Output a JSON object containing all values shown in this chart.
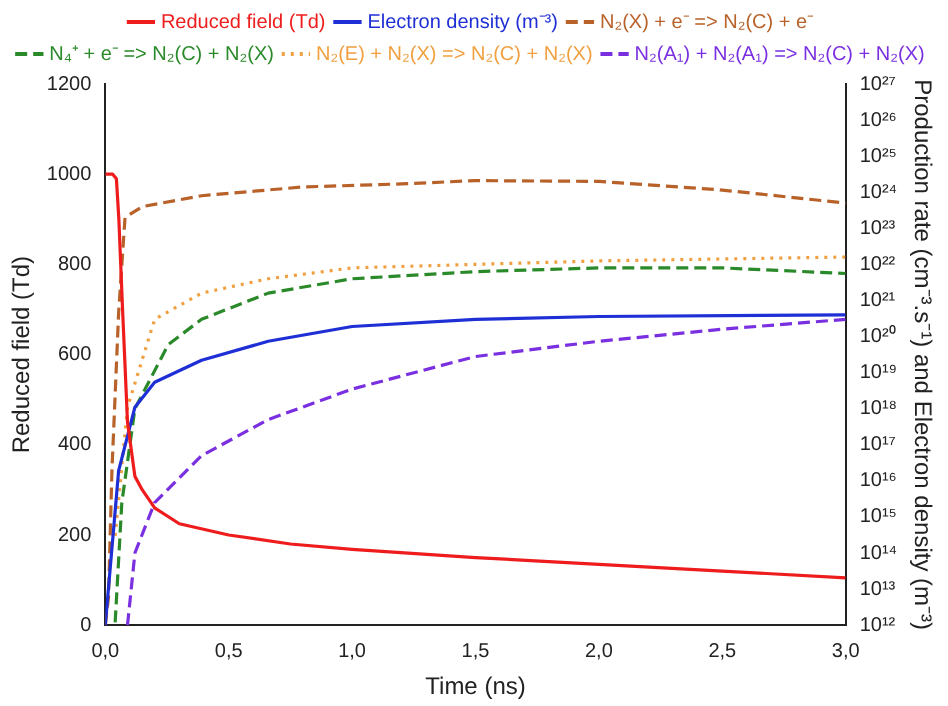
{
  "chart_data": {
    "type": "line",
    "xlabel": "Time (ns)",
    "ylabel": "Reduced field (Td)",
    "y2label": "Production rate (cm⁻³.s⁻¹) and Electron density (m⁻³)",
    "xlim": [
      0,
      3
    ],
    "xticks": [
      {
        "value": 0,
        "label": "0,0"
      },
      {
        "value": 0.5,
        "label": "0,5"
      },
      {
        "value": 1,
        "label": "1,0"
      },
      {
        "value": 1.5,
        "label": "1,5"
      },
      {
        "value": 2,
        "label": "2,0"
      },
      {
        "value": 2.5,
        "label": "2,5"
      },
      {
        "value": 3,
        "label": "3,0"
      }
    ],
    "ylim": [
      0,
      1200
    ],
    "yticks": [
      0,
      200,
      400,
      600,
      800,
      1000,
      1200
    ],
    "y2lim": [
      1000000000000.0,
      1e+27
    ],
    "y2ticks": [
      {
        "value": 1000000000000.0,
        "label": "10¹²"
      },
      {
        "value": 10000000000000.0,
        "label": "10¹³"
      },
      {
        "value": 100000000000000.0,
        "label": "10¹⁴"
      },
      {
        "value": 1000000000000000.0,
        "label": "10¹⁵"
      },
      {
        "value": 1e+16,
        "label": "10¹⁶"
      },
      {
        "value": 1e+17,
        "label": "10¹⁷"
      },
      {
        "value": 1e+18,
        "label": "10¹⁸"
      },
      {
        "value": 1e+19,
        "label": "10¹⁹"
      },
      {
        "value": 1e+20,
        "label": "10²⁰"
      },
      {
        "value": 1e+21,
        "label": "10²¹"
      },
      {
        "value": 1e+22,
        "label": "10²²"
      },
      {
        "value": 1e+23,
        "label": "10²³"
      },
      {
        "value": 1e+24,
        "label": "10²⁴"
      },
      {
        "value": 1e+25,
        "label": "10²⁵"
      },
      {
        "value": 1e+26,
        "label": "10²⁶"
      },
      {
        "value": 1e+27,
        "label": "10²⁷"
      }
    ],
    "log": "y2",
    "grid": false,
    "legend": "top",
    "marker": "none",
    "series": [
      {
        "name": "Reduced field (Td)",
        "color": "#ee1c1c",
        "line_style": "solid",
        "x": [
          0,
          0.03,
          0.045,
          0.055,
          0.07,
          0.09,
          0.12,
          0.15,
          0.2,
          0.3,
          0.5,
          0.75,
          1.0,
          1.5,
          2.0,
          2.5,
          3.0
        ],
        "values": [
          1000,
          1000,
          990,
          900,
          700,
          450,
          330,
          300,
          260,
          225,
          200,
          180,
          168,
          150,
          135,
          120,
          105
        ]
      },
      {
        "name": "Electron density (m⁻³)",
        "color": "#1f2fd6",
        "line_style": "solid",
        "axis": "y2",
        "x": [
          0,
          0.054,
          0.12,
          0.2,
          0.39,
          0.66,
          1.0,
          1.5,
          2.0,
          3.0
        ],
        "values": [
          1000000000000.0,
          1.9e+16,
          1.1e+18,
          5.4e+18,
          2.2e+19,
          7.4e+19,
          1.9e+20,
          3e+20,
          3.6e+20,
          4e+20
        ]
      },
      {
        "name": "N₂(X) + e⁻ => N₂(C) + e⁻",
        "color": "#b8622a",
        "line_style": "dashed",
        "axis": "y2",
        "x": [
          0,
          0.013,
          0.027,
          0.054,
          0.08,
          0.15,
          0.39,
          0.8,
          1.2,
          1.5,
          2.0,
          2.5,
          3.0
        ],
        "values": [
          1000000000000.0,
          6000000000000.0,
          2e+16,
          4.5e+20,
          2e+23,
          4e+23,
          8e+23,
          1.4e+24,
          1.7e+24,
          2.1e+24,
          2e+24,
          1.15e+24,
          5e+23
        ]
      },
      {
        "name": "N₄⁺ + e⁻ => N₂(C) + N₂(X)",
        "color": "#2a8a2a",
        "line_style": "dashed",
        "axis": "y2",
        "x": [
          0.04,
          0.067,
          0.12,
          0.255,
          0.39,
          0.66,
          1.0,
          1.5,
          2.0,
          2.5,
          3.0
        ],
        "values": [
          1200000000000.0,
          2500000000000000.0,
          1e+18,
          6e+19,
          3e+20,
          1.6e+21,
          4e+21,
          6.3e+21,
          8e+21,
          8e+21,
          5.6e+21
        ]
      },
      {
        "name": "N₂(E) + N₂(X) => N₂(C) + N₂(X)",
        "color": "#f0a040",
        "line_style": "dotted",
        "axis": "y2",
        "x": [
          0.04,
          0.09,
          0.2,
          0.39,
          0.66,
          1.0,
          2.0,
          3.0
        ],
        "values": [
          300000000000000.0,
          1.1e+18,
          3e+20,
          1.6e+21,
          4e+21,
          8e+21,
          1.25e+22,
          1.6e+22
        ]
      },
      {
        "name": "N₂(A₁) + N₂(A₁) => N₂(C) + N₂(X)",
        "color": "#7a30e0",
        "line_style": "dashed",
        "axis": "y2",
        "x": [
          0.09,
          0.12,
          0.2,
          0.39,
          0.66,
          1.0,
          1.5,
          2.0,
          2.5,
          3.0
        ],
        "values": [
          1000000000000.0,
          100000000000000.0,
          2500000000000000.0,
          5e+16,
          5e+17,
          3.5e+18,
          2.8e+19,
          7.4e+19,
          1.6e+20,
          3e+20
        ]
      }
    ]
  }
}
